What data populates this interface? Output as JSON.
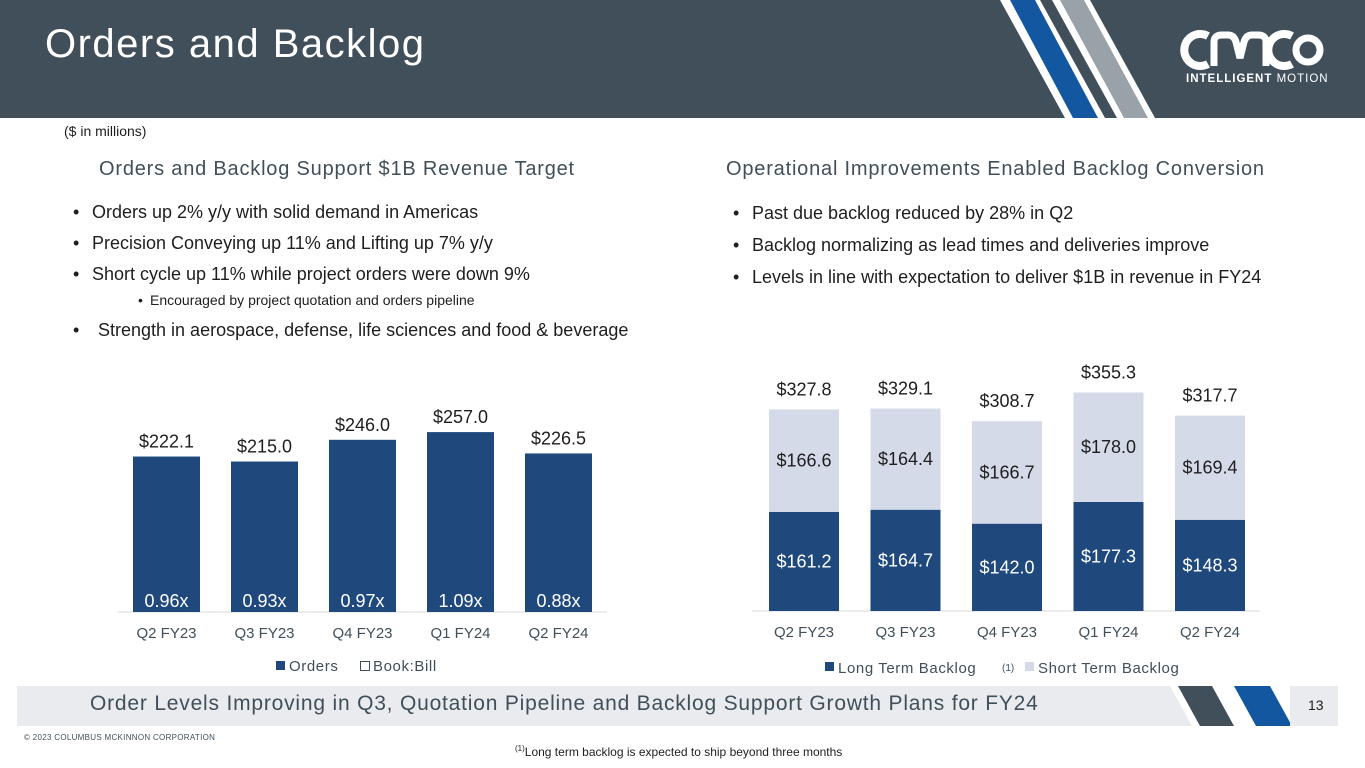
{
  "header": {
    "title": "Orders and Backlog"
  },
  "logo": {
    "wordmark": "CMCO",
    "sub_bold": "INTELLIGENT",
    "sub_light": "MOTION"
  },
  "units_note": "($ in millions)",
  "left": {
    "heading": "Orders and Backlog Support $1B Revenue Target",
    "bullets": [
      "Orders up 2% y/y with solid demand in Americas",
      "Precision Conveying up 11% and Lifting up 7% y/y",
      "Short cycle up 11% while project orders were down 9%",
      "Encouraged by project quotation and orders pipeline",
      "Strength in aerospace, defense, life sciences and food & beverage"
    ]
  },
  "right": {
    "heading": "Operational Improvements Enabled Backlog Conversion",
    "bullets": [
      "Past due backlog reduced by 28% in Q2",
      "Backlog normalizing as lead times and deliveries improve",
      "Levels in line with expectation to deliver $1B in revenue in FY24"
    ]
  },
  "bullet_glyph": "•",
  "colors": {
    "dark_blue": "#1f497d",
    "light": "#d5dae8",
    "slate": "#404f5a",
    "accent_blue": "#1257a0",
    "gray": "#9aa2a9"
  },
  "chart_data": [
    {
      "type": "bar",
      "categories": [
        "Q2 FY23",
        "Q3 FY23",
        "Q4 FY23",
        "Q1 FY24",
        "Q2 FY24"
      ],
      "series": [
        {
          "name": "Orders",
          "values": [
            222.1,
            215.0,
            246.0,
            257.0,
            226.5
          ],
          "labels": [
            "$222.1",
            "$215.0",
            "$246.0",
            "$257.0",
            "$226.5"
          ]
        },
        {
          "name": "Book:Bill",
          "values": [
            0.96,
            0.93,
            0.97,
            1.09,
            0.88
          ],
          "labels": [
            "0.96x",
            "0.93x",
            "0.97x",
            "1.09x",
            "0.88x"
          ]
        }
      ],
      "ylim": [
        0,
        300
      ],
      "grid": false,
      "legend": "bottom"
    },
    {
      "type": "bar",
      "stacked": true,
      "categories": [
        "Q2 FY23",
        "Q3 FY23",
        "Q4 FY23",
        "Q1 FY24",
        "Q2 FY24"
      ],
      "series": [
        {
          "name": "Long Term Backlog",
          "name_sup": "(1)",
          "values": [
            161.2,
            164.7,
            142.0,
            177.3,
            148.3
          ],
          "labels": [
            "$161.2",
            "$164.7",
            "$142.0",
            "$177.3",
            "$148.3"
          ]
        },
        {
          "name": "Short Term Backlog",
          "values": [
            166.6,
            164.4,
            166.7,
            178.0,
            169.4
          ],
          "labels": [
            "$166.6",
            "$164.4",
            "$166.7",
            "$178.0",
            "$169.4"
          ]
        }
      ],
      "totals": [
        327.8,
        329.1,
        308.7,
        355.3,
        317.7
      ],
      "total_labels": [
        "$327.8",
        "$329.1",
        "$308.7",
        "$355.3",
        "$317.7"
      ],
      "ylim": [
        0,
        400
      ],
      "grid": false,
      "legend": "bottom"
    }
  ],
  "footer": {
    "message": "Order Levels Improving in Q3, Quotation Pipeline and Backlog Support Growth Plans for FY24",
    "page": "13"
  },
  "copyright": "© 2023 COLUMBUS MCKINNON CORPORATION",
  "footnote": {
    "sup": "(1)",
    "text": "Long term backlog is expected to ship beyond three months"
  }
}
